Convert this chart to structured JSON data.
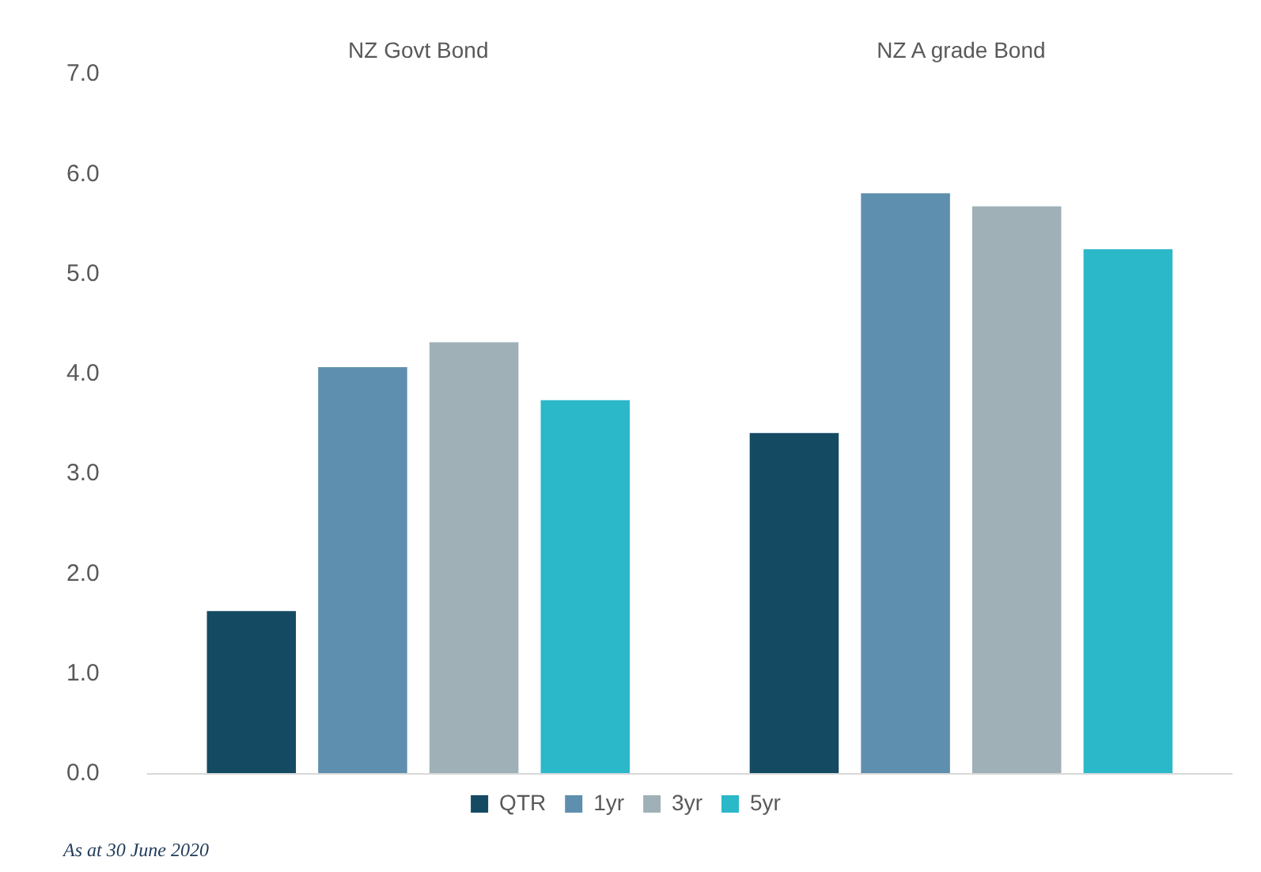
{
  "chart_data": {
    "type": "bar",
    "categories": [
      "NZ Govt Bond",
      "NZ A grade Bond"
    ],
    "series": [
      {
        "name": "QTR",
        "color": "#154a63",
        "values": [
          1.63,
          3.41
        ]
      },
      {
        "name": "1yr",
        "color": "#5f8fae",
        "values": [
          4.07,
          5.81
        ]
      },
      {
        "name": "3yr",
        "color": "#9fb1b7",
        "values": [
          4.32,
          5.68
        ]
      },
      {
        "name": "5yr",
        "color": "#2bb8c9",
        "values": [
          3.74,
          5.25
        ]
      }
    ],
    "ylim": [
      0,
      7
    ],
    "yticks": [
      {
        "value": 0,
        "label": "0.0"
      },
      {
        "value": 1,
        "label": "1.0"
      },
      {
        "value": 2,
        "label": "2.0"
      },
      {
        "value": 3,
        "label": "3.0"
      },
      {
        "value": 4,
        "label": "4.0"
      },
      {
        "value": 5,
        "label": "5.0"
      },
      {
        "value": 6,
        "label": "6.0"
      },
      {
        "value": 7,
        "label": "7.0"
      }
    ],
    "grid": false,
    "legend": "bottom",
    "annotations": [
      "As at 30 June 2020"
    ]
  }
}
